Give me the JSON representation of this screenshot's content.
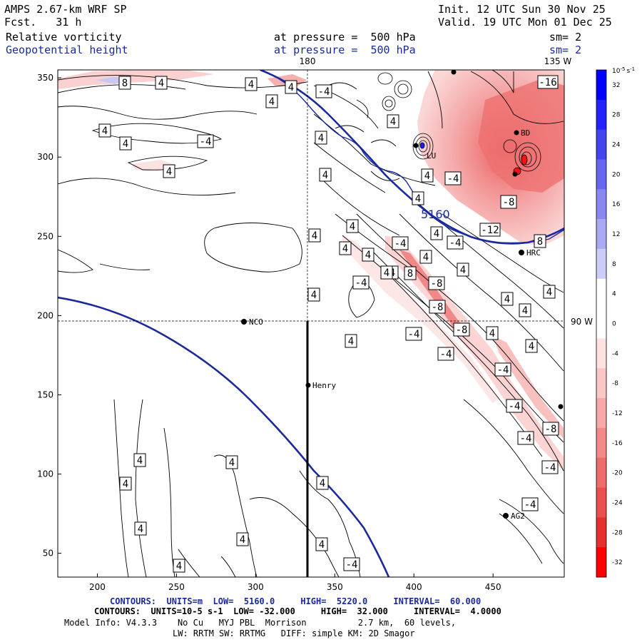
{
  "header": {
    "model": "AMPS 2.67-km WRF SP",
    "fcst_label": "Fcst.",
    "fcst_value": "31 h",
    "init": "Init. 12 UTC Sun 30 Nov 25",
    "valid": "Valid. 19 UTC Mon 01 Dec 25",
    "field1_name": "Relative vorticity",
    "field1_level": "at pressure =  500 hPa",
    "field1_sm": "sm= 2",
    "field2_name": "Geopotential height",
    "field2_level": "at pressure =  500 hPa",
    "field2_sm": "sm= 2"
  },
  "map": {
    "lon_top_180": "180",
    "lon_top_135w": "135 W",
    "lon_right_90w": "90 W",
    "geopotential_label": "5160",
    "colors": {
      "geopotential": "#1a2a9c",
      "coastline": "#1a2a9c",
      "positive_fill": "#ffdcdc",
      "positive_strong": "#e85050",
      "negative_fill": "#3030ff"
    }
  },
  "stations": {
    "nco": "NCO",
    "henry": "Henry",
    "hrc": "HRC",
    "ag2": "AG2",
    "lu": "LU",
    "bd": "BD"
  },
  "axes": {
    "x_ticks": [
      200,
      250,
      300,
      350,
      400,
      450
    ],
    "y_ticks": [
      50,
      100,
      150,
      200,
      250,
      300,
      350
    ],
    "x_range": [
      175,
      495
    ],
    "y_range": [
      35,
      355
    ]
  },
  "colorbar": {
    "units": "10",
    "units_exp": "-5",
    "units_suffix": "s",
    "units_suffix_exp": "-1",
    "ticks": [
      "32",
      "28",
      "24",
      "20",
      "16",
      "12",
      "8",
      "4",
      "0",
      "-4",
      "-8",
      "-12",
      "-16",
      "-20",
      "-24",
      "-28",
      "-32"
    ],
    "colors": [
      "#0000ff",
      "#2222ff",
      "#4444ee",
      "#6666ee",
      "#8888ee",
      "#aaaaf2",
      "#ccccf8",
      "#ffffff",
      "#ffffff",
      "#fde2e2",
      "#fbc6c6",
      "#f7a8a8",
      "#f28a8a",
      "#ee6c6c",
      "#ea4e4e",
      "#e63030",
      "#ff0000"
    ]
  },
  "contour_labels": [
    "8",
    "4",
    "4",
    "4",
    "4",
    "4",
    "4",
    "-4",
    "4",
    "4",
    "4",
    "-4",
    "4",
    "4",
    "4",
    "4",
    "4",
    "4",
    "-4",
    "4",
    "4",
    "-4",
    "4",
    "4",
    "4",
    "4",
    "-4",
    "4",
    "8",
    "-8",
    "4",
    "-8",
    "-4",
    "4",
    "4",
    "4",
    "-4",
    "-8",
    "-4",
    "4",
    "-4",
    "4",
    "-4",
    "4",
    "-4",
    "-8",
    "-4",
    "-4",
    "4",
    "4",
    "4",
    "4",
    "4",
    "4",
    "-4",
    "-12",
    "-8",
    "-16",
    "8",
    "4"
  ],
  "footer": {
    "c1_label": "CONTOURS:",
    "c1_units": "UNITS=m",
    "c1_low": "LOW=  5160.0",
    "c1_high": "HIGH=  5220.0",
    "c1_interval": "INTERVAL=  60.000",
    "c2_label": "CONTOURS:",
    "c2_units": "UNITS=10-5 s-1",
    "c2_low": "LOW= -32.000",
    "c2_high": "HIGH=  32.000",
    "c2_interval": "INTERVAL=  4.0000",
    "model_info": "Model Info: V4.3.3    No Cu   MYJ PBL  Morrison          2.7 km,  60 levels,",
    "model_info2": "LW: RRTM SW: RRTMG   DIFF: simple KM: 2D Smagor"
  }
}
